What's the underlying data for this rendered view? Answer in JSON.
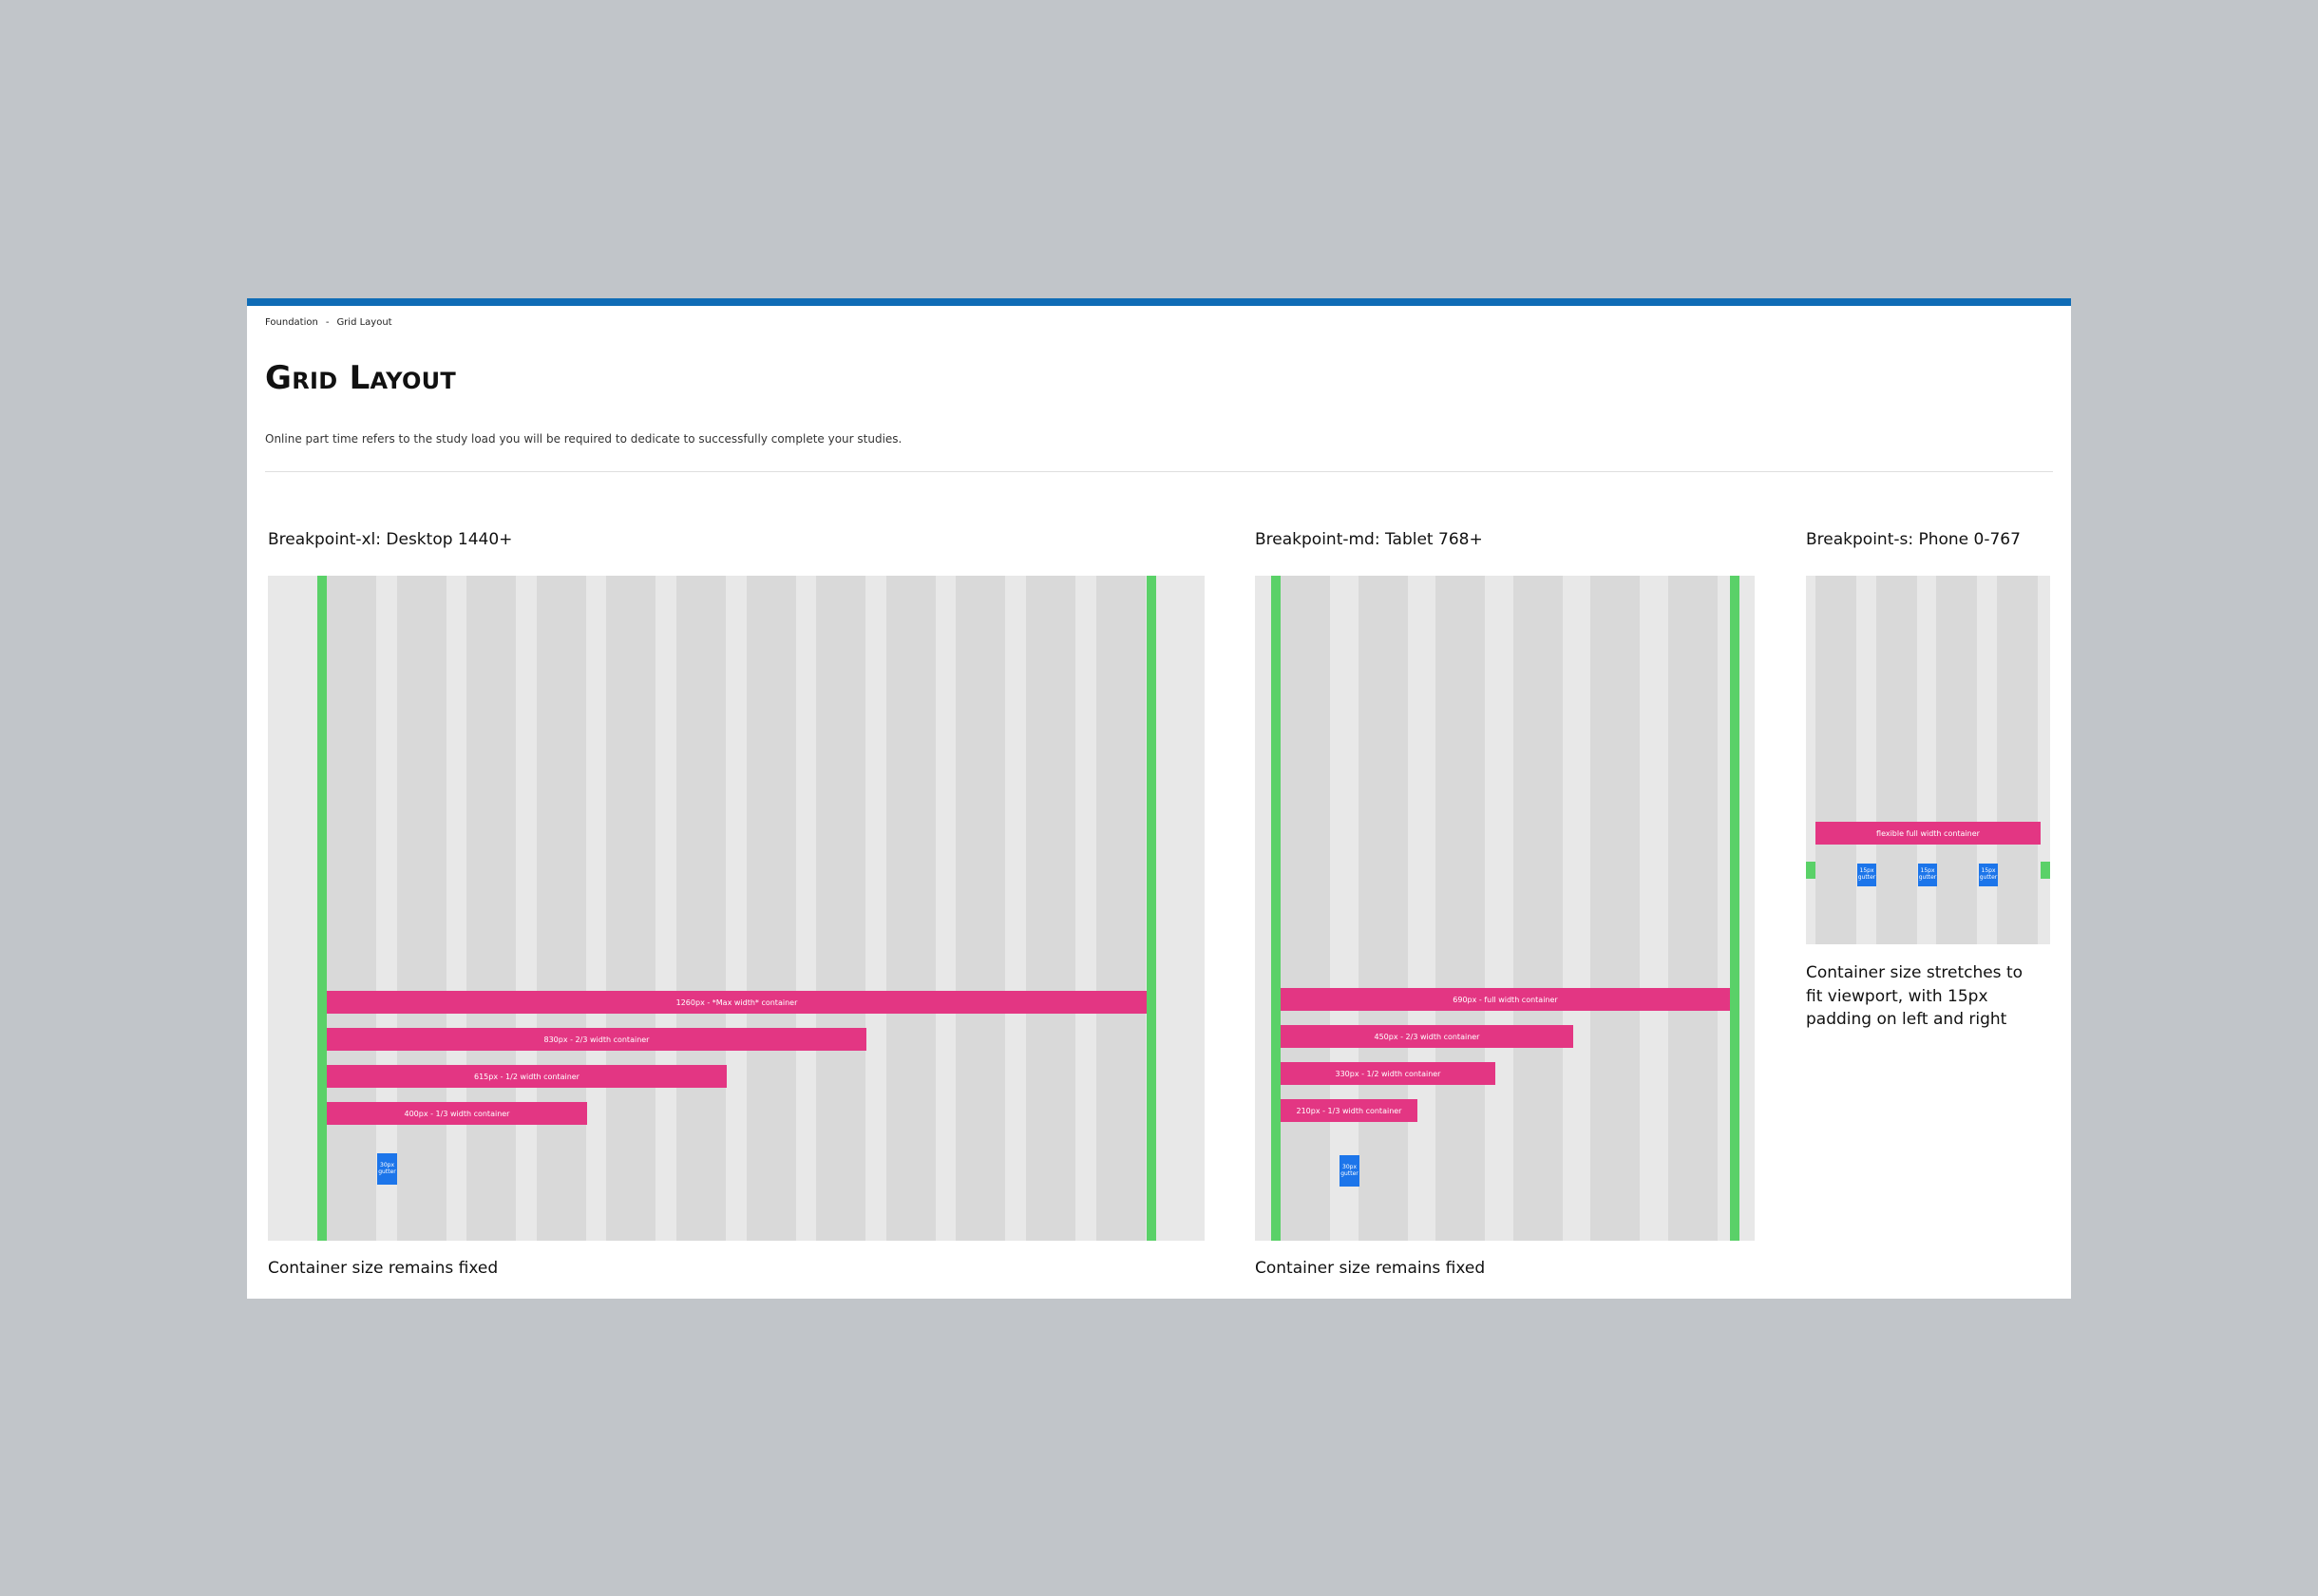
{
  "breadcrumb": {
    "items": [
      "Foundation",
      "Grid Layout"
    ],
    "separator": "-"
  },
  "page": {
    "title": "Grid Layout",
    "description": "Online part time refers to the study load you will be required to dedicate to successfully complete your studies."
  },
  "colors": {
    "page_background": "#c1c5c9",
    "top_border": "#0f6cb6",
    "column": "#d9d9d9",
    "gutter_area": "#e8e8e8",
    "margin_marker": "#5ad168",
    "container_bar": "#e33683",
    "gutter_marker": "#1c75ea"
  },
  "breakpoints": [
    {
      "label": "Breakpoint-xl: Desktop 1440+",
      "columns": 12,
      "containers": [
        "1260px - *Max width* container",
        "830px - 2/3 width container",
        "615px - 1/2 width container",
        "400px - 1/3 width container"
      ],
      "gutter_label": "30px gutter",
      "caption": "Container size remains fixed"
    },
    {
      "label": "Breakpoint-md: Tablet 768+",
      "columns": 6,
      "containers": [
        "690px - full width container",
        "450px - 2/3 width container",
        "330px - 1/2 width container",
        "210px - 1/3 width container"
      ],
      "gutter_label": "30px gutter",
      "caption": "Container size remains fixed"
    },
    {
      "label": "Breakpoint-s: Phone 0-767",
      "columns": 4,
      "containers": [
        "flexible full width container"
      ],
      "gutter_label": "15px gutter",
      "caption": "Container size stretches to fit viewport, with 15px padding on left and right"
    }
  ]
}
